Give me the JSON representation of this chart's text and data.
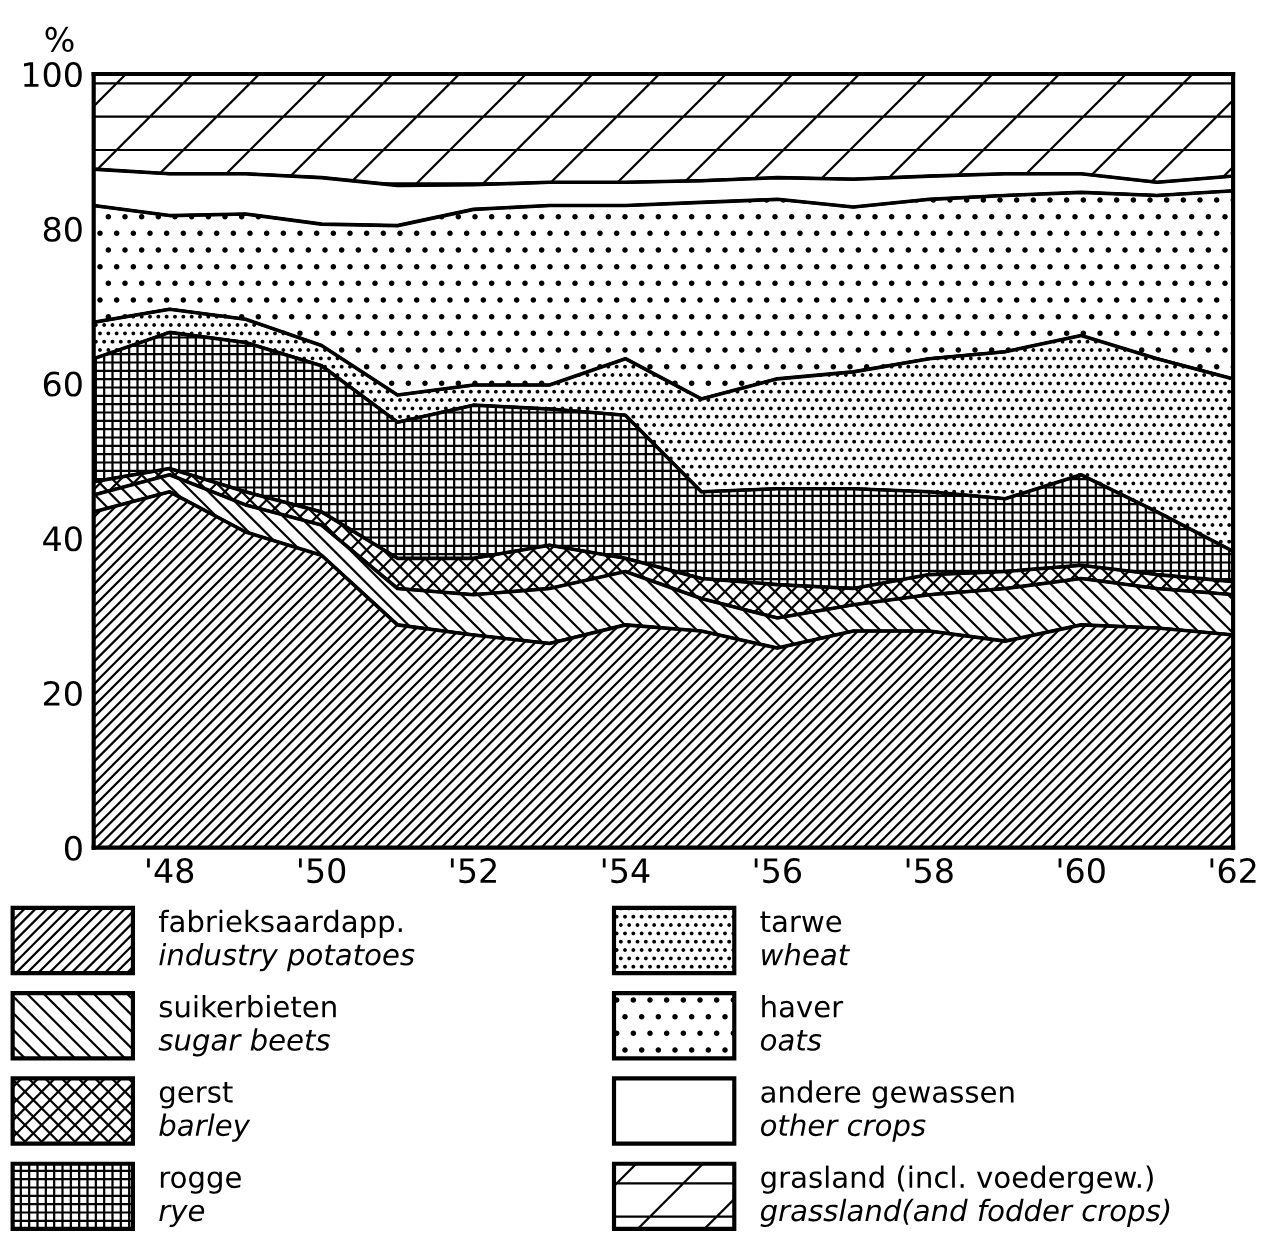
{
  "chart_data": {
    "type": "area",
    "stacked": true,
    "ylabel": "%",
    "legend": "bottom",
    "x": [
      1947,
      1948,
      1949,
      1950,
      1951,
      1952,
      1953,
      1954,
      1955,
      1956,
      1957,
      1958,
      1959,
      1960,
      1961,
      1962
    ],
    "xlim": [
      1947,
      1962
    ],
    "ylim": [
      0,
      100
    ],
    "xticks": [
      {
        "value": 1948,
        "label": "'48"
      },
      {
        "value": 1950,
        "label": "'50"
      },
      {
        "value": 1952,
        "label": "'52"
      },
      {
        "value": 1954,
        "label": "'54"
      },
      {
        "value": 1956,
        "label": "'56"
      },
      {
        "value": 1958,
        "label": "'58"
      },
      {
        "value": 1960,
        "label": "'60"
      },
      {
        "value": 1962,
        "label": "'62"
      }
    ],
    "yticks": [
      0,
      20,
      40,
      60,
      80,
      100
    ],
    "series": [
      {
        "name": "fabrieksaardapp.\nindustry potatoes",
        "color": "#000000",
        "values": [
          43.4,
          46.0,
          40.8,
          37.8,
          28.8,
          27.5,
          26.4,
          28.8,
          28.0,
          25.8,
          28.0,
          28.0,
          26.7,
          28.8,
          28.4,
          27.5
        ]
      },
      {
        "name": "suikerbieten\nsugar beets",
        "color": "#000000",
        "values": [
          2.2,
          2.2,
          3.5,
          3.9,
          4.7,
          5.2,
          7.1,
          6.9,
          4.2,
          3.9,
          3.4,
          4.7,
          6.8,
          6.0,
          5.1,
          5.2
        ]
      },
      {
        "name": "gerst\nbarley",
        "color": "#000000",
        "values": [
          1.7,
          0.8,
          1.7,
          1.7,
          3.9,
          4.7,
          5.6,
          1.7,
          2.6,
          4.3,
          2.1,
          2.6,
          2.2,
          1.7,
          1.8,
          1.7
        ]
      },
      {
        "name": "rogge\nrye",
        "color": "#000000",
        "values": [
          15.9,
          17.6,
          19.3,
          18.9,
          17.6,
          19.8,
          17.6,
          18.5,
          11.2,
          12.4,
          12.9,
          10.7,
          9.4,
          11.7,
          8.1,
          3.9
        ]
      },
      {
        "name": "tarwe\nwheat",
        "color": "#000000",
        "values": [
          4.7,
          3.0,
          3.0,
          2.6,
          3.5,
          2.6,
          3.1,
          7.3,
          12.0,
          14.2,
          15.1,
          17.2,
          19.0,
          18.0,
          19.8,
          22.3
        ]
      },
      {
        "name": "haver\noats",
        "color": "#000000",
        "values": [
          15.1,
          12.1,
          13.6,
          15.7,
          21.9,
          22.7,
          23.2,
          19.8,
          25.4,
          23.2,
          21.3,
          20.6,
          20.2,
          18.5,
          21.1,
          24.3
        ]
      },
      {
        "name": "andere gewassen\nother crops",
        "color": "#000000",
        "values": [
          4.7,
          5.4,
          5.2,
          6.0,
          5.2,
          3.2,
          3.0,
          3.0,
          2.8,
          2.8,
          3.6,
          3.0,
          2.8,
          2.4,
          1.7,
          1.9
        ]
      },
      {
        "name": "grasland (incl. voedergew.)\ngrassland(and fodder crops)",
        "color": "#000000",
        "values": [
          12.3,
          12.9,
          12.9,
          13.4,
          14.4,
          14.3,
          14.0,
          14.0,
          13.8,
          13.4,
          13.6,
          13.2,
          12.9,
          12.9,
          14.0,
          13.2
        ]
      }
    ]
  }
}
